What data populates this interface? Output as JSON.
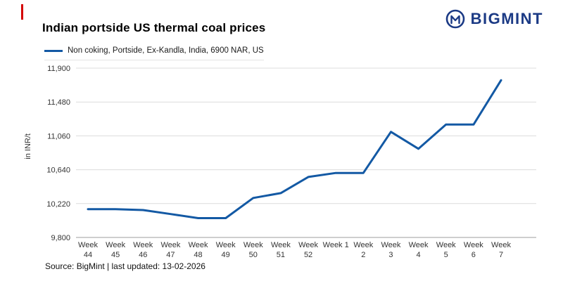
{
  "page": {
    "accent_color": "#d40000",
    "brand": {
      "name": "BIGMINT",
      "color": "#1b3a85"
    },
    "title": "Indian portside US thermal coal prices",
    "legend": {
      "label": "Non coking, Portside, Ex-Kandla, India, 6900 NAR, US",
      "line_color": "#1359a4"
    },
    "source_note": "Source: BigMint | last updated: 13-02-2026"
  },
  "chart_data": {
    "type": "line",
    "title": "Indian portside US thermal coal prices",
    "xlabel": "",
    "ylabel": "in INR/t",
    "legend": [
      "Non coking, Portside, Ex-Kandla, India, 6900 NAR, US"
    ],
    "legend_position": "top-left",
    "grid": true,
    "ylim": [
      9800,
      11900
    ],
    "yticks": [
      9800,
      10220,
      10640,
      11060,
      11480,
      11900
    ],
    "ytick_labels": [
      "9,800",
      "10,220",
      "10,640",
      "11,060",
      "11,480",
      "11,900"
    ],
    "categories": [
      "Week 44",
      "Week 45",
      "Week 46",
      "Week 47",
      "Week 48",
      "Week 49",
      "Week 50",
      "Week 51",
      "Week 52",
      "Week 1",
      "Week 2",
      "Week 3",
      "Week 4",
      "Week 5",
      "Week 6",
      "Week 7"
    ],
    "categories_lines": [
      [
        "Week",
        "44"
      ],
      [
        "Week",
        "45"
      ],
      [
        "Week",
        "46"
      ],
      [
        "Week",
        "47"
      ],
      [
        "Week",
        "48"
      ],
      [
        "Week",
        "49"
      ],
      [
        "Week",
        "50"
      ],
      [
        "Week",
        "51"
      ],
      [
        "Week",
        "52"
      ],
      [
        "Week 1"
      ],
      [
        "Week",
        "2"
      ],
      [
        "Week",
        "3"
      ],
      [
        "Week",
        "4"
      ],
      [
        "Week",
        "5"
      ],
      [
        "Week",
        "6"
      ],
      [
        "Week",
        "7"
      ]
    ],
    "series": [
      {
        "name": "Non coking, Portside, Ex-Kandla, India, 6900 NAR, US",
        "color": "#1359a4",
        "values": [
          10150,
          10150,
          10140,
          10090,
          10040,
          10040,
          10290,
          10350,
          10550,
          10600,
          10600,
          11110,
          10900,
          11200,
          11200,
          11750
        ]
      }
    ]
  }
}
